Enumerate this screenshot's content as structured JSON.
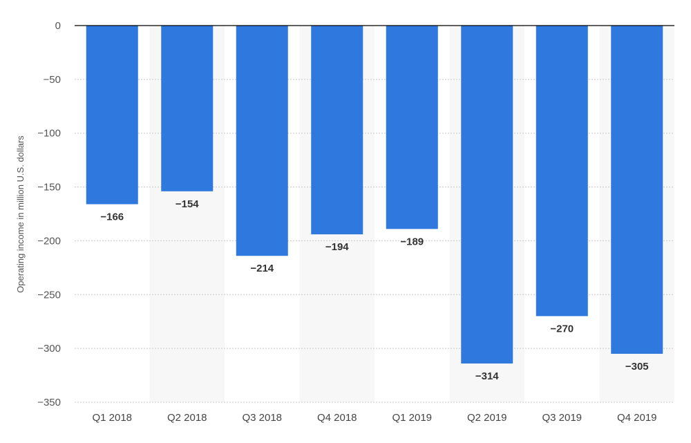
{
  "chart_data": {
    "type": "bar",
    "title": "",
    "xlabel": "",
    "ylabel": "Operating income in million U.S. dollars",
    "categories": [
      "Q1 2018",
      "Q2 2018",
      "Q3 2018",
      "Q4 2018",
      "Q1 2019",
      "Q2 2019",
      "Q3 2019",
      "Q4 2019"
    ],
    "values": [
      -166,
      -154,
      -214,
      -194,
      -189,
      -314,
      -270,
      -305
    ],
    "data_labels": [
      "−166",
      "−154",
      "−214",
      "−194",
      "−189",
      "−314",
      "−270",
      "−305"
    ],
    "ylim": [
      -350,
      0
    ],
    "yticks": [
      0,
      -50,
      -100,
      -150,
      -200,
      -250,
      -300,
      -350
    ],
    "ytick_labels": [
      "0",
      "−50",
      "−100",
      "−150",
      "−200",
      "−250",
      "−300",
      "−350"
    ],
    "grid": true,
    "bar_color": "#2f78dd",
    "band_color": "#f7f7f7",
    "zero_line_color": "#000000"
  }
}
